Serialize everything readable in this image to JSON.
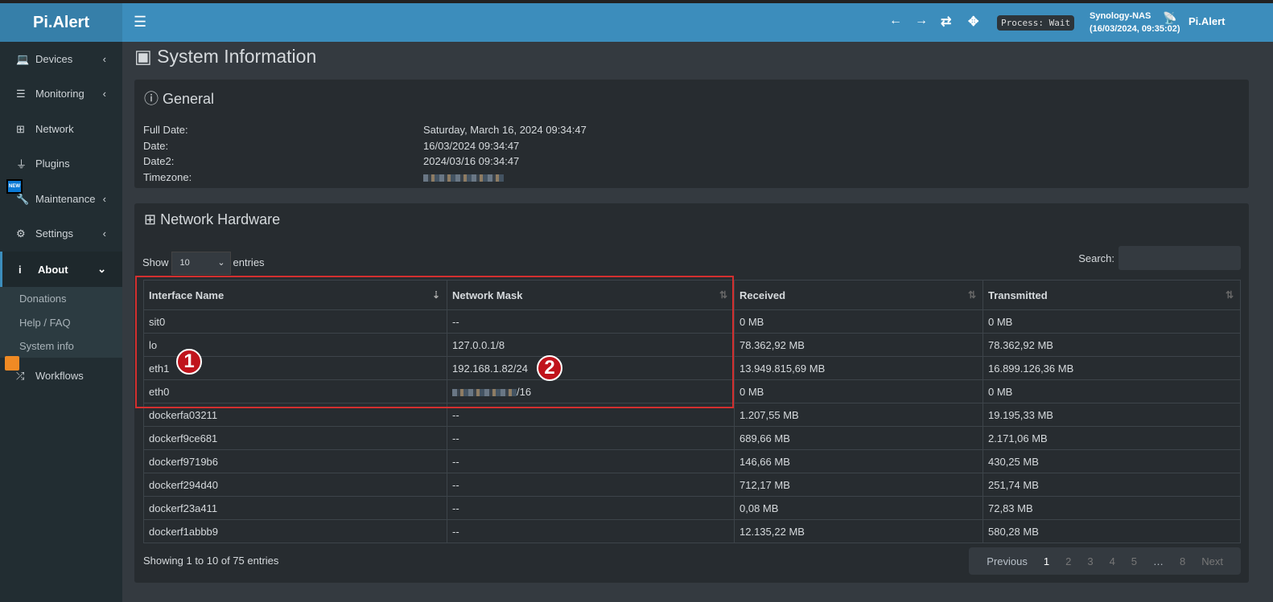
{
  "app": {
    "logo": "Pi.Alert",
    "process": "Process: Wait",
    "host": "Synology-NAS",
    "host_time": "(16/03/2024, 09:35:02)",
    "brand": "Pi.Alert",
    "new_badge": "NEW"
  },
  "sidebar": {
    "items": [
      {
        "label": "Devices",
        "icon": "laptop-icon"
      },
      {
        "label": "Monitoring",
        "icon": "chart-icon"
      },
      {
        "label": "Network",
        "icon": "sitemap-icon"
      },
      {
        "label": "Plugins",
        "icon": "plug-icon"
      },
      {
        "label": "Maintenance",
        "icon": "wrench-icon"
      },
      {
        "label": "Settings",
        "icon": "gear-icon"
      },
      {
        "label": "About",
        "icon": "info-icon"
      },
      {
        "label": "Workflows",
        "icon": "shuffle-icon"
      }
    ],
    "about_sub": [
      "Donations",
      "Help / FAQ",
      "System info"
    ]
  },
  "page": {
    "title": "System Information"
  },
  "general": {
    "title": "General",
    "rows": [
      {
        "k": "Full Date:",
        "v": "Saturday, March 16, 2024 09:34:47"
      },
      {
        "k": "Date:",
        "v": "16/03/2024 09:34:47"
      },
      {
        "k": "Date2:",
        "v": "2024/03/16 09:34:47"
      },
      {
        "k": "Timezone:",
        "v": ""
      }
    ]
  },
  "network": {
    "title": "Network Hardware",
    "show": "Show",
    "entries_sel": "10",
    "entries": "entries",
    "search": "Search:",
    "columns": [
      "Interface Name",
      "Network Mask",
      "Received",
      "Transmitted"
    ],
    "rows": [
      [
        "sit0",
        "--",
        "0 MB",
        "0 MB"
      ],
      [
        "lo",
        "127.0.0.1/8",
        "78.362,92 MB",
        "78.362,92 MB"
      ],
      [
        "eth1",
        "192.168.1.82/24",
        "13.949.815,69 MB",
        "16.899.126,36 MB"
      ],
      [
        "eth0",
        "/16",
        "0 MB",
        "0 MB"
      ],
      [
        "dockerfa03211",
        "--",
        "1.207,55 MB",
        "19.195,33 MB"
      ],
      [
        "dockerf9ce681",
        "--",
        "689,66 MB",
        "2.171,06 MB"
      ],
      [
        "dockerf9719b6",
        "--",
        "146,66 MB",
        "430,25 MB"
      ],
      [
        "dockerf294d40",
        "--",
        "712,17 MB",
        "251,74 MB"
      ],
      [
        "dockerf23a411",
        "--",
        "0,08 MB",
        "72,83 MB"
      ],
      [
        "dockerf1abbb9",
        "--",
        "12.135,22 MB",
        "580,28 MB"
      ]
    ],
    "info": "Showing 1 to 10 of 75 entries",
    "pager": {
      "prev": "Previous",
      "pages": [
        "1",
        "2",
        "3",
        "4",
        "5",
        "…",
        "8"
      ],
      "next": "Next"
    }
  },
  "annotations": [
    "1",
    "2"
  ]
}
